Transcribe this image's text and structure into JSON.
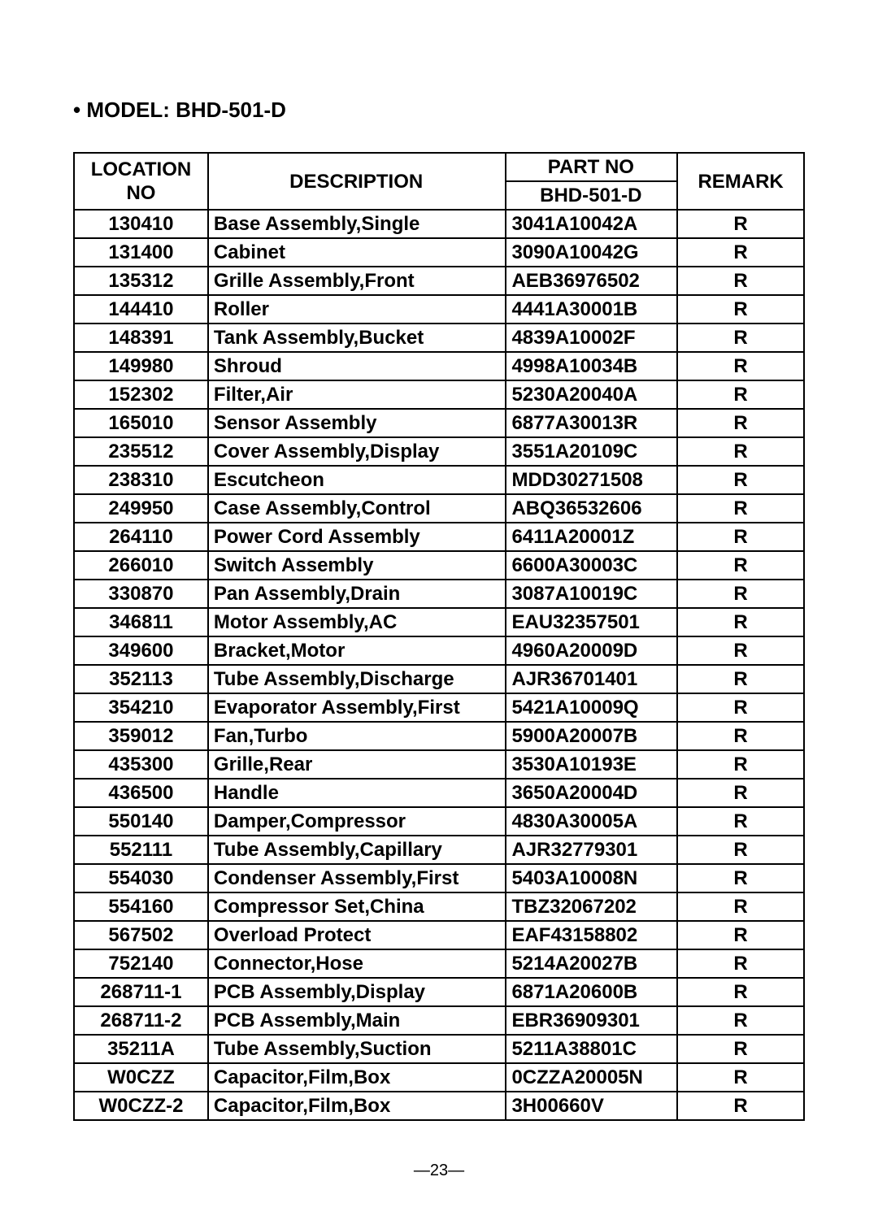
{
  "model_label": "• MODEL: BHD-501-D",
  "headers": {
    "location": "LOCATION NO",
    "description": "DESCRIPTION",
    "part_no": "PART NO",
    "part_sub": "BHD-501-D",
    "remark": "REMARK"
  },
  "rows": [
    {
      "loc": "130410",
      "desc": "Base Assembly,Single",
      "part": "3041A10042A",
      "rem": "R"
    },
    {
      "loc": "131400",
      "desc": "Cabinet",
      "part": "3090A10042G",
      "rem": "R"
    },
    {
      "loc": "135312",
      "desc": "Grille Assembly,Front",
      "part": "AEB36976502",
      "rem": "R"
    },
    {
      "loc": "144410",
      "desc": "Roller",
      "part": "4441A30001B",
      "rem": "R"
    },
    {
      "loc": "148391",
      "desc": "Tank Assembly,Bucket",
      "part": "4839A10002F",
      "rem": "R"
    },
    {
      "loc": "149980",
      "desc": "Shroud",
      "part": "4998A10034B",
      "rem": "R"
    },
    {
      "loc": "152302",
      "desc": "Filter,Air",
      "part": "5230A20040A",
      "rem": "R"
    },
    {
      "loc": "165010",
      "desc": "Sensor Assembly",
      "part": "6877A30013R",
      "rem": "R"
    },
    {
      "loc": "235512",
      "desc": "Cover Assembly,Display",
      "part": "3551A20109C",
      "rem": "R"
    },
    {
      "loc": "238310",
      "desc": "Escutcheon",
      "part": "MDD30271508",
      "rem": "R"
    },
    {
      "loc": "249950",
      "desc": "Case Assembly,Control",
      "part": "ABQ36532606",
      "rem": "R"
    },
    {
      "loc": "264110",
      "desc": "Power Cord Assembly",
      "part": "6411A20001Z",
      "rem": "R"
    },
    {
      "loc": "266010",
      "desc": "Switch Assembly",
      "part": "6600A30003C",
      "rem": "R"
    },
    {
      "loc": "330870",
      "desc": "Pan Assembly,Drain",
      "part": "3087A10019C",
      "rem": "R"
    },
    {
      "loc": "346811",
      "desc": "Motor Assembly,AC",
      "part": "EAU32357501",
      "rem": "R"
    },
    {
      "loc": "349600",
      "desc": "Bracket,Motor",
      "part": "4960A20009D",
      "rem": "R"
    },
    {
      "loc": "352113",
      "desc": "Tube Assembly,Discharge",
      "part": "AJR36701401",
      "rem": "R"
    },
    {
      "loc": "354210",
      "desc": "Evaporator Assembly,First",
      "part": "5421A10009Q",
      "rem": "R"
    },
    {
      "loc": "359012",
      "desc": "Fan,Turbo",
      "part": "5900A20007B",
      "rem": "R"
    },
    {
      "loc": "435300",
      "desc": "Grille,Rear",
      "part": "3530A10193E",
      "rem": "R"
    },
    {
      "loc": "436500",
      "desc": "Handle",
      "part": "3650A20004D",
      "rem": "R"
    },
    {
      "loc": "550140",
      "desc": "Damper,Compressor",
      "part": "4830A30005A",
      "rem": "R"
    },
    {
      "loc": "552111",
      "desc": "Tube Assembly,Capillary",
      "part": "AJR32779301",
      "rem": "R"
    },
    {
      "loc": "554030",
      "desc": "Condenser Assembly,First",
      "part": "5403A10008N",
      "rem": "R"
    },
    {
      "loc": "554160",
      "desc": "Compressor Set,China",
      "part": "TBZ32067202",
      "rem": "R"
    },
    {
      "loc": "567502",
      "desc": "Overload Protect",
      "part": "EAF43158802",
      "rem": "R"
    },
    {
      "loc": "752140",
      "desc": "Connector,Hose",
      "part": "5214A20027B",
      "rem": "R"
    },
    {
      "loc": "268711-1",
      "desc": "PCB Assembly,Display",
      "part": "6871A20600B",
      "rem": "R"
    },
    {
      "loc": "268711-2",
      "desc": "PCB Assembly,Main",
      "part": "EBR36909301",
      "rem": "R"
    },
    {
      "loc": "35211A",
      "desc": "Tube Assembly,Suction",
      "part": "5211A38801C",
      "rem": "R"
    },
    {
      "loc": "W0CZZ",
      "desc": "Capacitor,Film,Box",
      "part": "0CZZA20005N",
      "rem": "R"
    },
    {
      "loc": "W0CZZ-2",
      "desc": "Capacitor,Film,Box",
      "part": "3H00660V",
      "rem": "R"
    }
  ],
  "footer": "—23—"
}
